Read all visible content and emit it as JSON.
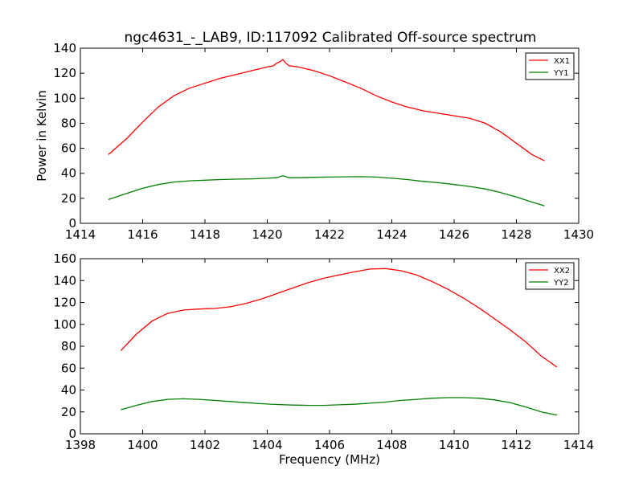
{
  "title": "ngc4631_-_LAB9, ID:117092 Calibrated Off-source spectrum",
  "chart_data": [
    {
      "type": "line",
      "xlim": [
        1414,
        1430
      ],
      "ylim": [
        0,
        140
      ],
      "ylabel": "Power in Kelvin",
      "xlabel": "",
      "x_ticks": [
        1414,
        1416,
        1418,
        1420,
        1422,
        1424,
        1426,
        1428,
        1430
      ],
      "y_ticks": [
        0,
        20,
        40,
        60,
        80,
        100,
        120,
        140
      ],
      "legend": "top-right",
      "grid": false,
      "series": [
        {
          "name": "XX1",
          "color": "#ff0000",
          "x": [
            1414.9,
            1415.5,
            1416.0,
            1416.5,
            1417.0,
            1417.5,
            1418.0,
            1418.5,
            1419.0,
            1419.5,
            1420.0,
            1420.2,
            1420.3,
            1420.4,
            1420.5,
            1420.6,
            1420.7,
            1421.0,
            1421.5,
            1422.0,
            1422.5,
            1423.0,
            1423.5,
            1424.0,
            1424.5,
            1425.0,
            1425.5,
            1426.0,
            1426.5,
            1427.0,
            1427.5,
            1428.0,
            1428.5,
            1428.9
          ],
          "y": [
            55,
            68,
            81,
            93,
            102,
            108,
            112,
            116,
            119,
            122,
            125,
            126,
            128,
            129,
            131,
            128,
            126,
            125,
            122,
            118,
            113,
            108,
            102,
            97,
            93,
            90,
            88,
            86,
            84,
            80,
            73,
            64,
            55,
            50
          ]
        },
        {
          "name": "YY1",
          "color": "#008000",
          "x": [
            1414.9,
            1415.5,
            1416.0,
            1416.5,
            1417.0,
            1417.5,
            1418.0,
            1418.5,
            1419.0,
            1419.5,
            1420.0,
            1420.3,
            1420.5,
            1420.7,
            1421.0,
            1421.5,
            1422.0,
            1422.5,
            1423.0,
            1423.5,
            1424.0,
            1424.5,
            1425.0,
            1425.5,
            1426.0,
            1426.5,
            1427.0,
            1427.5,
            1428.0,
            1428.5,
            1428.9
          ],
          "y": [
            19,
            24,
            28,
            31,
            33,
            34,
            34.5,
            35,
            35.3,
            35.6,
            36,
            36.5,
            38,
            36.5,
            36.5,
            36.8,
            37,
            37.2,
            37.3,
            37,
            36,
            35,
            33.5,
            32.5,
            31,
            29.5,
            27.5,
            24.5,
            21,
            17,
            14
          ]
        }
      ]
    },
    {
      "type": "line",
      "xlim": [
        1398,
        1414
      ],
      "ylim": [
        0,
        160
      ],
      "ylabel": "",
      "xlabel": "Frequency (MHz)",
      "x_ticks": [
        1398,
        1400,
        1402,
        1404,
        1406,
        1408,
        1410,
        1412,
        1414
      ],
      "y_ticks": [
        0,
        20,
        40,
        60,
        80,
        100,
        120,
        140,
        160
      ],
      "legend": "top-right",
      "grid": false,
      "series": [
        {
          "name": "XX2",
          "color": "#ff0000",
          "x": [
            1399.3,
            1399.8,
            1400.3,
            1400.8,
            1401.3,
            1401.8,
            1402.3,
            1402.8,
            1403.3,
            1403.8,
            1404.3,
            1404.8,
            1405.3,
            1405.8,
            1406.3,
            1406.8,
            1407.3,
            1407.8,
            1408.3,
            1408.8,
            1409.3,
            1409.8,
            1410.3,
            1410.8,
            1411.3,
            1411.8,
            1412.3,
            1412.8,
            1413.3
          ],
          "y": [
            76,
            91,
            103,
            110,
            113,
            114,
            114.5,
            116,
            119,
            123,
            128,
            133,
            138,
            142,
            145,
            148,
            150.5,
            151,
            149,
            145,
            139,
            132,
            124,
            115,
            105,
            95,
            84,
            71,
            61
          ]
        },
        {
          "name": "YY2",
          "color": "#008000",
          "x": [
            1399.3,
            1399.8,
            1400.3,
            1400.8,
            1401.3,
            1401.8,
            1402.3,
            1402.8,
            1403.3,
            1403.8,
            1404.3,
            1404.8,
            1405.3,
            1405.8,
            1406.3,
            1406.8,
            1407.3,
            1407.8,
            1408.3,
            1408.8,
            1409.3,
            1409.8,
            1410.3,
            1410.8,
            1411.3,
            1411.8,
            1412.3,
            1412.8,
            1413.3
          ],
          "y": [
            22,
            26,
            29.5,
            31.5,
            32,
            31.5,
            30.5,
            29.5,
            28.5,
            27.5,
            26.8,
            26.3,
            26,
            26,
            26.5,
            27,
            28,
            29,
            30.5,
            31.5,
            32.5,
            33,
            33,
            32.5,
            31,
            28.5,
            24.5,
            20,
            17
          ]
        }
      ]
    }
  ]
}
